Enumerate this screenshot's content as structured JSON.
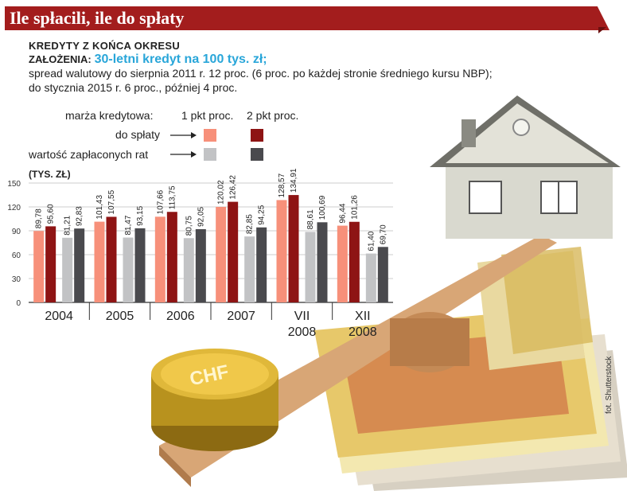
{
  "header": {
    "title": "Ile spłacili, ile do spłaty",
    "subtitle": "KREDYTY Z KOŃCA OKRESU",
    "assumptions_label": "ZAŁOŻENIA:",
    "assumptions_highlight": "30-letni kredyt na 100 tys. zł;",
    "line2": "spread walutowy do sierpnia 2011 r. 12 proc. (6 proc. po każdej stronie średniego kursu NBP);",
    "line3": "do stycznia 2015 r. 6 proc., później 4 proc."
  },
  "legend": {
    "margin_label": "marża kredytowa:",
    "col1": "1 pkt proc.",
    "col2": "2 pkt proc.",
    "row1": "do spłaty",
    "row2": "wartość zapłaconych rat",
    "colors": {
      "due_1": "#f7907a",
      "due_2": "#8e1414",
      "paid_1": "#c2c3c5",
      "paid_2": "#4a4a4e"
    }
  },
  "credit": "fot. Shutterstock",
  "chart_data": {
    "type": "bar",
    "ylabel": "(TYS. ZŁ)",
    "ylim": [
      0,
      150
    ],
    "yticks": [
      0,
      30,
      60,
      90,
      120,
      150
    ],
    "categories": [
      "2004",
      "2005",
      "2006",
      "2007",
      "VII 2008",
      "XII 2008"
    ],
    "series": [
      {
        "name": "do spłaty, 1 pkt proc.",
        "color": "#f7907a",
        "values": [
          89.78,
          101.43,
          107.66,
          120.02,
          128.57,
          96.44
        ]
      },
      {
        "name": "do spłaty, 2 pkt proc.",
        "color": "#8e1414",
        "values": [
          95.6,
          107.55,
          113.75,
          126.42,
          134.91,
          101.26
        ]
      },
      {
        "name": "wartość zapłaconych rat, 1 pkt proc.",
        "color": "#c2c3c5",
        "values": [
          81.21,
          81.47,
          80.75,
          82.85,
          88.61,
          61.4
        ]
      },
      {
        "name": "wartość zapłaconych rat, 2 pkt proc.",
        "color": "#4a4a4e",
        "values": [
          92.83,
          93.15,
          92.05,
          94.25,
          100.69,
          69.7
        ]
      }
    ],
    "labels": [
      [
        "89,78",
        "95,60",
        "81,21",
        "92,83"
      ],
      [
        "101,43",
        "107,55",
        "81,47",
        "93,15"
      ],
      [
        "107,66",
        "113,75",
        "80,75",
        "92,05"
      ],
      [
        "120,02",
        "126,42",
        "82,85",
        "94,25"
      ],
      [
        "128,57",
        "134,91",
        "88,61",
        "100,69"
      ],
      [
        "96,44",
        "101,26",
        "61,40",
        "69,70"
      ]
    ]
  }
}
